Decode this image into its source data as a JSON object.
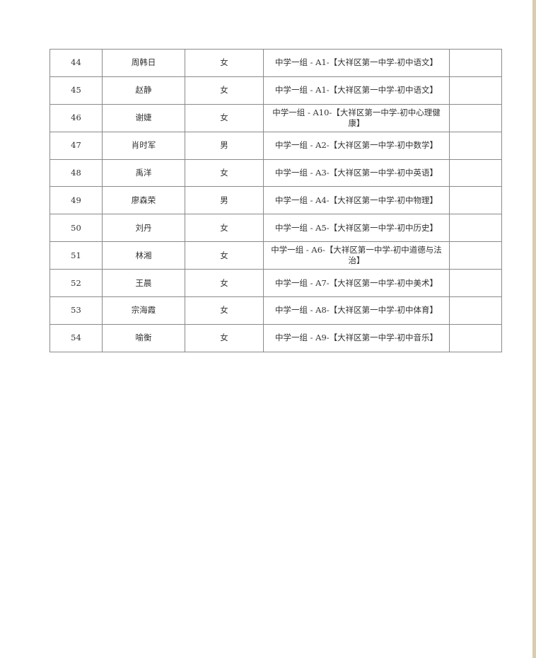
{
  "rows": [
    {
      "no": "44",
      "name": "周韩日",
      "gender": "女",
      "group": "中学一组 - A1-【大祥区第一中学-初中语文】",
      "note": ""
    },
    {
      "no": "45",
      "name": "赵静",
      "gender": "女",
      "group": "中学一组 - A1-【大祥区第一中学-初中语文】",
      "note": ""
    },
    {
      "no": "46",
      "name": "谢婕",
      "gender": "女",
      "group": "中学一组 - A10-【大祥区第一中学-初中心理健康】",
      "note": ""
    },
    {
      "no": "47",
      "name": "肖时军",
      "gender": "男",
      "group": "中学一组 - A2-【大祥区第一中学-初中数学】",
      "note": ""
    },
    {
      "no": "48",
      "name": "禹洋",
      "gender": "女",
      "group": "中学一组 - A3-【大祥区第一中学-初中英语】",
      "note": ""
    },
    {
      "no": "49",
      "name": "廖森荣",
      "gender": "男",
      "group": "中学一组 - A4-【大祥区第一中学-初中物理】",
      "note": ""
    },
    {
      "no": "50",
      "name": "刘丹",
      "gender": "女",
      "group": "中学一组 - A5-【大祥区第一中学-初中历史】",
      "note": ""
    },
    {
      "no": "51",
      "name": "林湘",
      "gender": "女",
      "group": "中学一组 - A6-【大祥区第一中学-初中道德与法治】",
      "note": ""
    },
    {
      "no": "52",
      "name": "王晨",
      "gender": "女",
      "group": "中学一组 - A7-【大祥区第一中学-初中美术】",
      "note": ""
    },
    {
      "no": "53",
      "name": "宗海霞",
      "gender": "女",
      "group": "中学一组 - A8-【大祥区第一中学-初中体育】",
      "note": ""
    },
    {
      "no": "54",
      "name": "喻衡",
      "gender": "女",
      "group": "中学一组 - A9-【大祥区第一中学-初中音乐】",
      "note": ""
    }
  ]
}
